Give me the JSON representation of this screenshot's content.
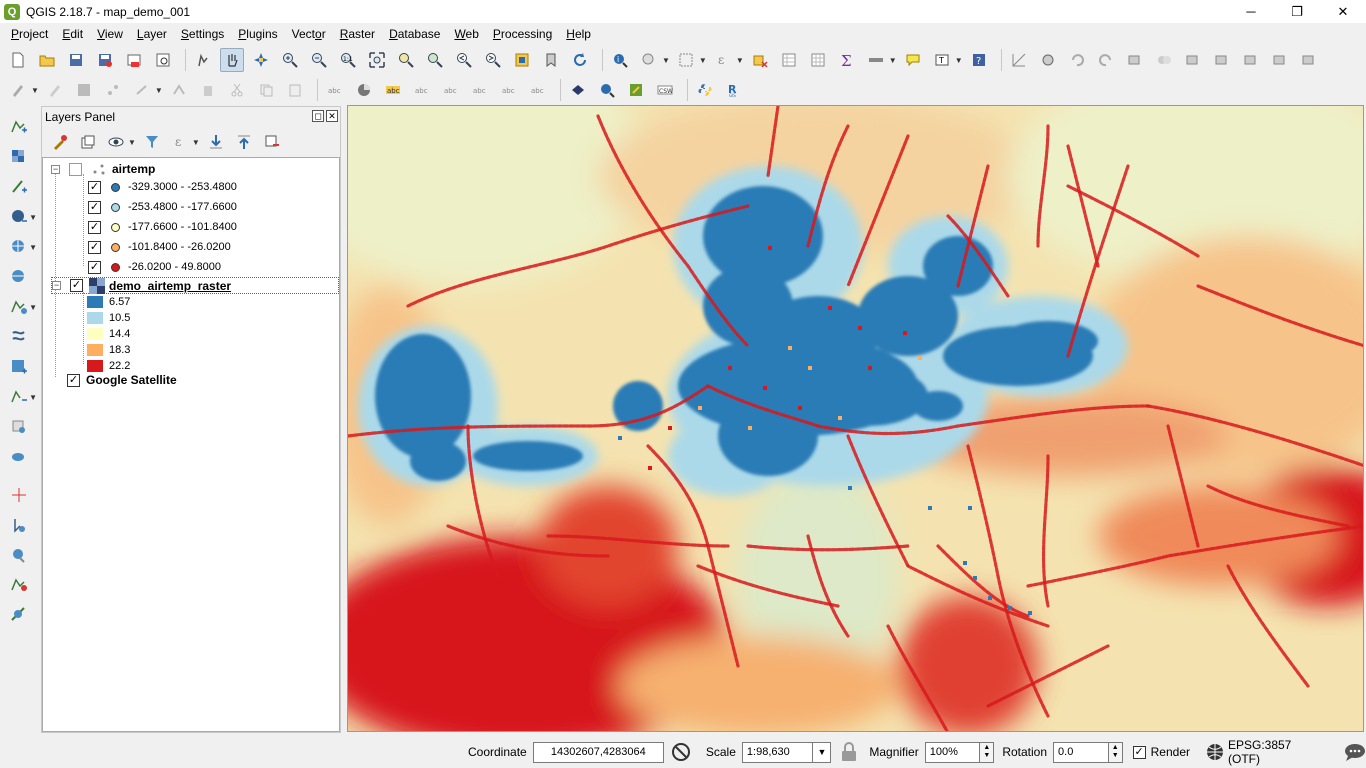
{
  "window": {
    "title": "QGIS 2.18.7 - map_demo_001",
    "app_icon": "qgis-logo-icon",
    "minimize": "─",
    "maximize": "❐",
    "close": "✕"
  },
  "menu": [
    {
      "label": "Project",
      "mnemonic": "P"
    },
    {
      "label": "Edit",
      "mnemonic": "E"
    },
    {
      "label": "View",
      "mnemonic": "V"
    },
    {
      "label": "Layer",
      "mnemonic": "L"
    },
    {
      "label": "Settings",
      "mnemonic": "S"
    },
    {
      "label": "Plugins",
      "mnemonic": "P"
    },
    {
      "label": "Vector",
      "mnemonic": "o"
    },
    {
      "label": "Raster",
      "mnemonic": "R"
    },
    {
      "label": "Database",
      "mnemonic": "D"
    },
    {
      "label": "Web",
      "mnemonic": "W"
    },
    {
      "label": "Processing",
      "mnemonic": "P"
    },
    {
      "label": "Help",
      "mnemonic": "H"
    }
  ],
  "layers_panel": {
    "title": "Layers Panel",
    "float_glyph": "◻",
    "close_glyph": "✕",
    "layers": [
      {
        "name": "airtemp",
        "checked": false,
        "expanded": true,
        "classes": [
          {
            "label": "-329.3000 - -253.4800",
            "color": "#2c7bb6",
            "checked": true
          },
          {
            "label": "-253.4800 - -177.6600",
            "color": "#abd9e9",
            "checked": true
          },
          {
            "label": "-177.6600 - -101.8400",
            "color": "#ffffbf",
            "checked": true
          },
          {
            "label": "-101.8400 - -26.0200",
            "color": "#fdae61",
            "checked": true
          },
          {
            "label": "-26.0200 - 49.8000",
            "color": "#d7191c",
            "checked": true
          }
        ]
      },
      {
        "name": "demo_airtemp_raster",
        "checked": true,
        "expanded": true,
        "selected": true,
        "classes": [
          {
            "label": "6.57",
            "color": "#2c7bb6"
          },
          {
            "label": "10.5",
            "color": "#abd9e9"
          },
          {
            "label": "14.4",
            "color": "#ffffbf"
          },
          {
            "label": "18.3",
            "color": "#fdae61"
          },
          {
            "label": "22.2",
            "color": "#d7191c"
          }
        ]
      },
      {
        "name": "Google Satellite",
        "checked": true,
        "expanded": false
      }
    ]
  },
  "status": {
    "coordinate_label": "Coordinate",
    "coordinate_value": "14302607,4283064",
    "scale_label": "Scale",
    "scale_value": "1:98,630",
    "magnifier_label": "Magnifier",
    "magnifier_value": "100%",
    "rotation_label": "Rotation",
    "rotation_value": "0.0",
    "render_label": "Render",
    "render_checked": true,
    "crs_label": "EPSG:3857 (OTF)",
    "check_glyph": "✓",
    "expand_glyph": "−"
  },
  "colors": {
    "cold": "#2c7bb6",
    "cool": "#abd9e9",
    "neutral": "#ffffbf",
    "warm": "#fdae61",
    "hot": "#d7191c",
    "background": "#f5d6a0"
  }
}
